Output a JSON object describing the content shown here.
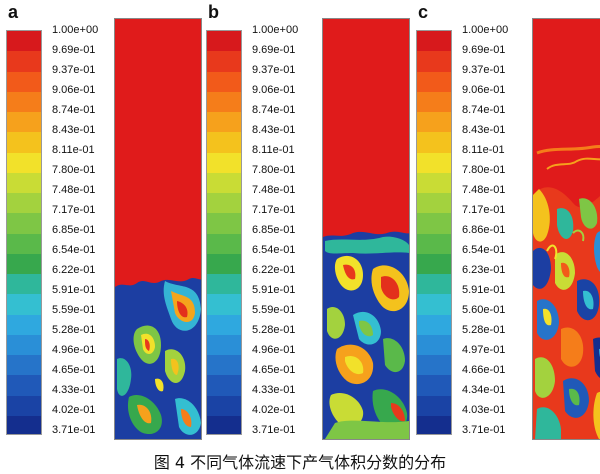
{
  "figure": {
    "caption": "图 4 不同气体流速下产气体积分数的分布",
    "colormap": [
      "#d7191c",
      "#e8391c",
      "#f25a1a",
      "#f57d1a",
      "#f6a11c",
      "#f4c21d",
      "#f2e12a",
      "#c9dc35",
      "#a3d23e",
      "#7ec645",
      "#5ab94a",
      "#37a84d",
      "#2fb79b",
      "#34bfd1",
      "#2fa8df",
      "#2a8fd7",
      "#2674c9",
      "#2059b8",
      "#1a43a5",
      "#142e8e"
    ],
    "panels": [
      {
        "label": "a",
        "ticks": [
          "1.00e+00",
          "9.69e-01",
          "9.37e-01",
          "9.06e-01",
          "8.74e-01",
          "8.43e-01",
          "8.11e-01",
          "7.80e-01",
          "7.48e-01",
          "7.17e-01",
          "6.85e-01",
          "6.54e-01",
          "6.22e-01",
          "5.91e-01",
          "5.59e-01",
          "5.28e-01",
          "4.96e-01",
          "4.65e-01",
          "4.33e-01",
          "4.02e-01",
          "3.71e-01"
        ],
        "bed_top_fraction": 0.37
      },
      {
        "label": "b",
        "ticks": [
          "1.00e+00",
          "9.69e-01",
          "9.37e-01",
          "9.06e-01",
          "8.74e-01",
          "8.43e-01",
          "8.11e-01",
          "7.80e-01",
          "7.48e-01",
          "7.17e-01",
          "6.85e-01",
          "6.54e-01",
          "6.22e-01",
          "5.91e-01",
          "5.59e-01",
          "5.28e-01",
          "4.96e-01",
          "4.65e-01",
          "4.33e-01",
          "4.02e-01",
          "3.71e-01"
        ],
        "bed_top_fraction": 0.49
      },
      {
        "label": "c",
        "ticks": [
          "1.00e+00",
          "9.69e-01",
          "9.37e-01",
          "9.06e-01",
          "8.74e-01",
          "8.43e-01",
          "8.11e-01",
          "7.80e-01",
          "7.48e-01",
          "7.17e-01",
          "6.86e-01",
          "6.54e-01",
          "6.23e-01",
          "5.91e-01",
          "5.60e-01",
          "5.28e-01",
          "4.97e-01",
          "4.66e-01",
          "4.34e-01",
          "4.03e-01",
          "3.71e-01"
        ],
        "bed_top_fraction": 0.71
      }
    ]
  }
}
